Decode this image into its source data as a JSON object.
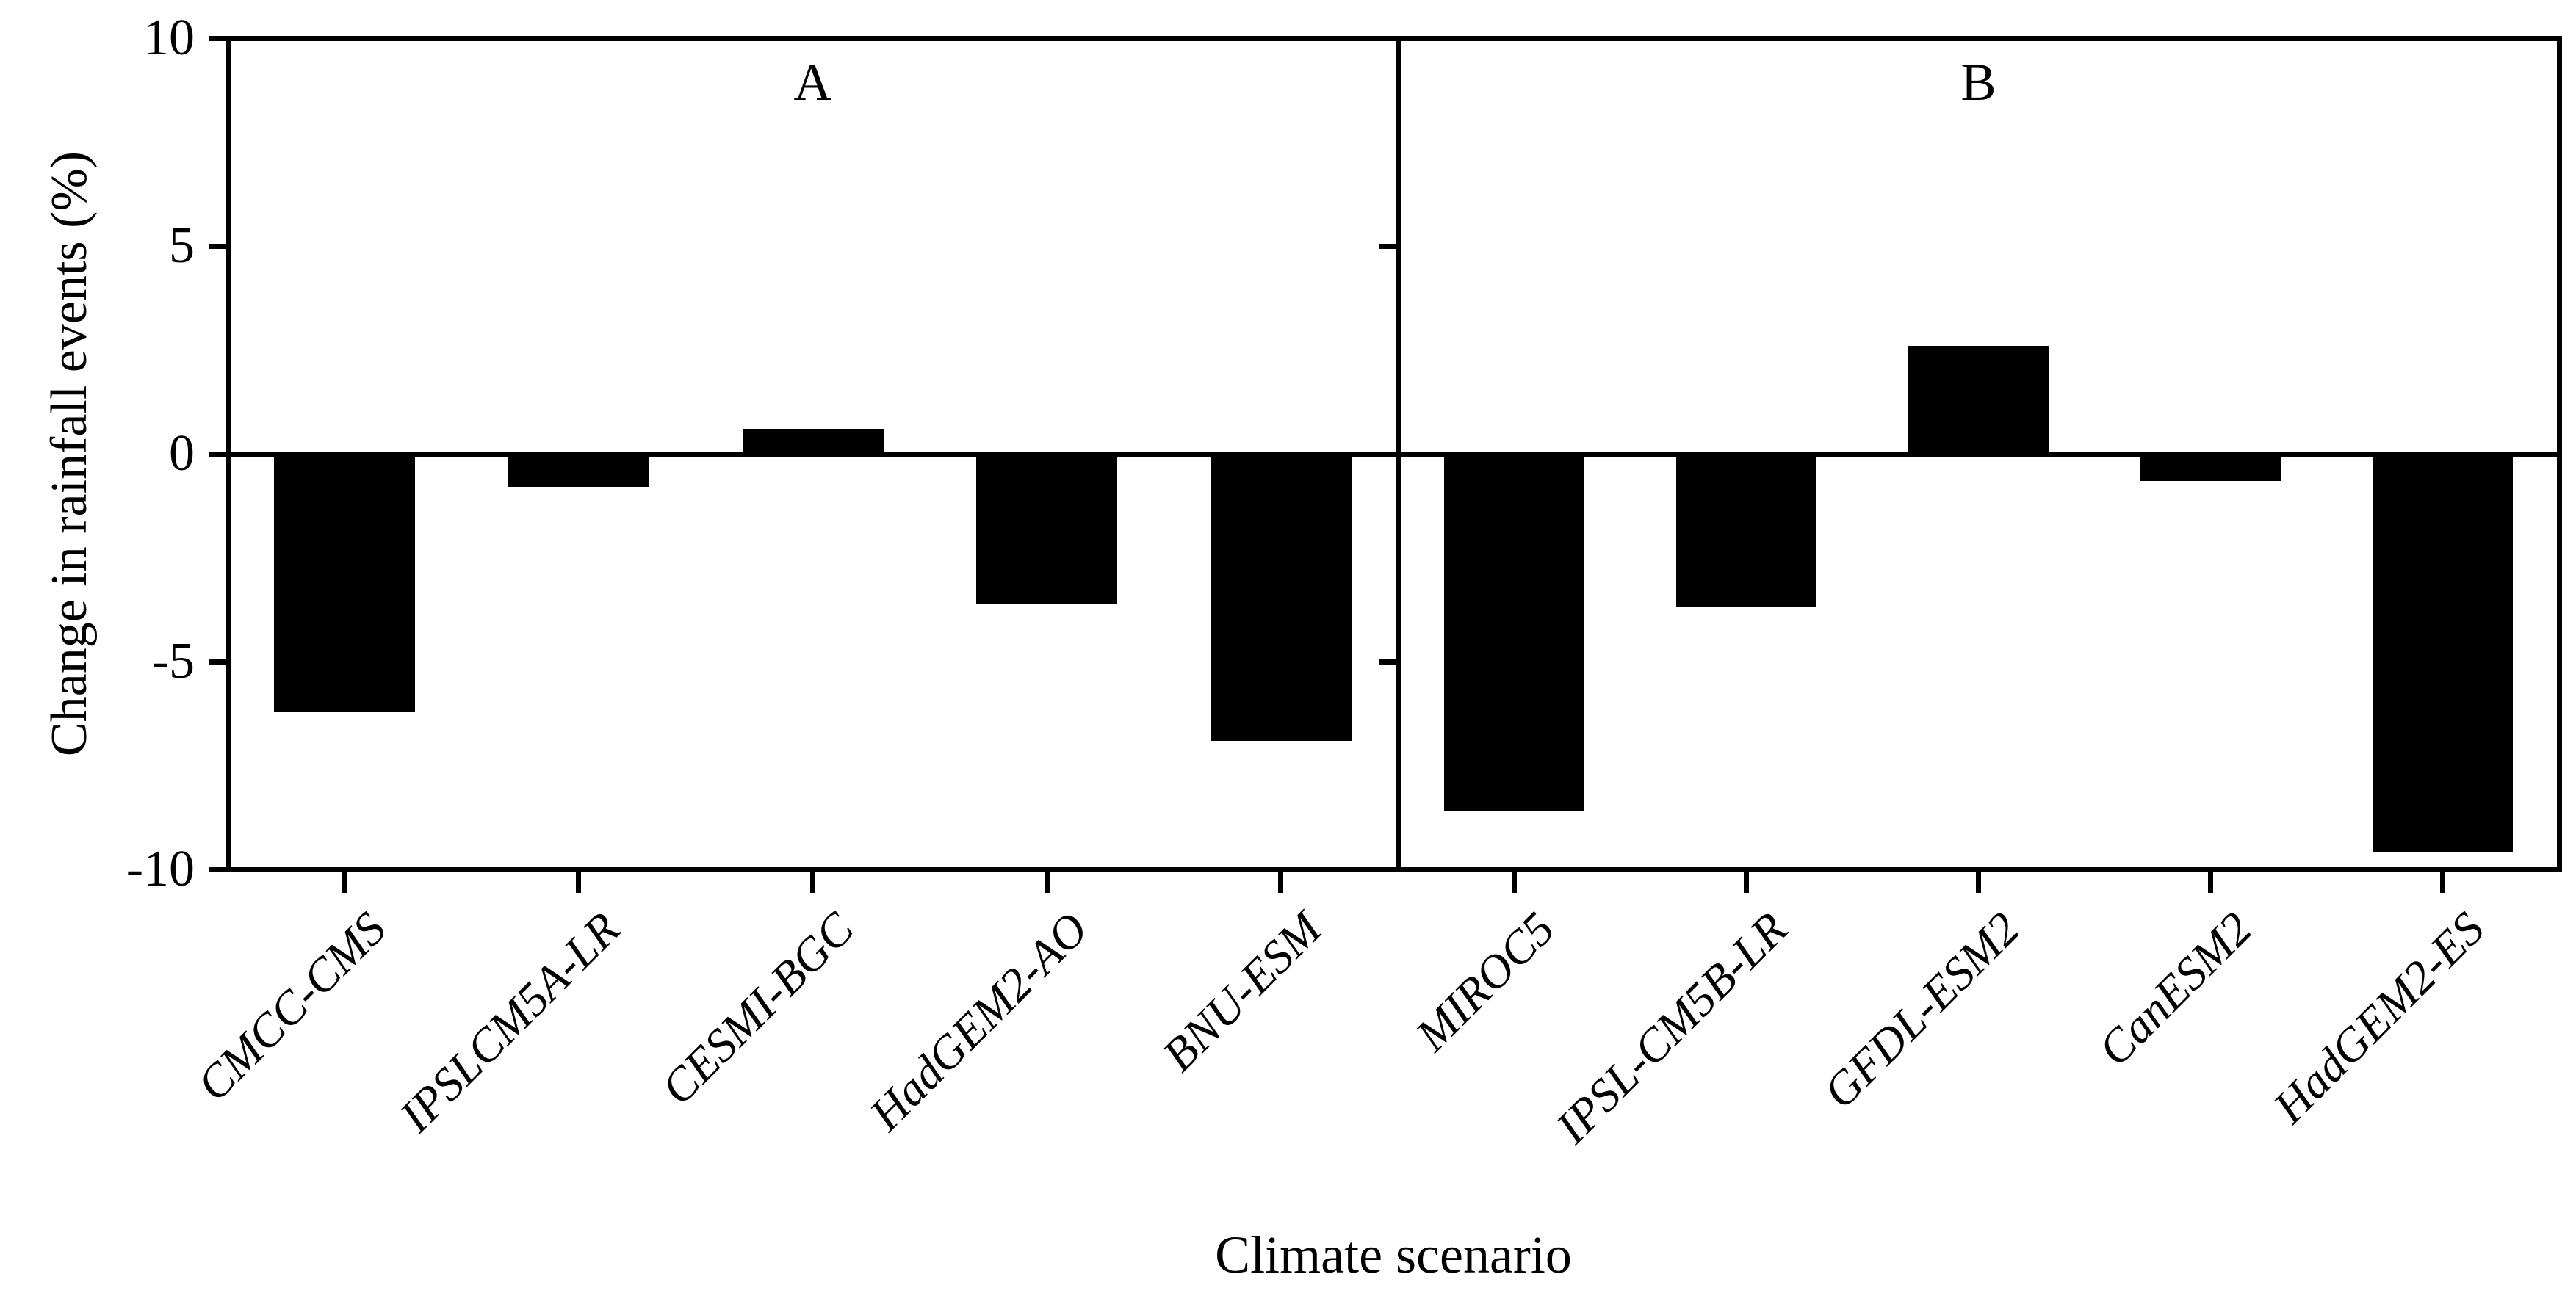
{
  "chart_data": {
    "type": "bar",
    "title": "",
    "xlabel": "Climate scenario",
    "ylabel": "Change in rainfall events (%)",
    "ylim": [
      -10,
      10
    ],
    "yticks": [
      10,
      5,
      0,
      -5,
      -10
    ],
    "grid": false,
    "legend": "none",
    "bar_color": "#000000",
    "background_color": "#ffffff",
    "panels": [
      {
        "label": "A",
        "categories": [
          "CMCC-CMS",
          "IPSLCM5A-LR",
          "CESMI-BGC",
          "HadGEM2-AO",
          "BNU-ESM"
        ],
        "values": [
          -6.2,
          -0.8,
          0.6,
          -3.6,
          -6.9
        ]
      },
      {
        "label": "B",
        "categories": [
          "MIROC5",
          "IPSL-CM5B-LR",
          "GFDL-ESM2",
          "CanESM2",
          "HadGEM2-ES"
        ],
        "values": [
          -8.6,
          -3.7,
          2.6,
          -0.65,
          -9.6
        ]
      }
    ]
  }
}
